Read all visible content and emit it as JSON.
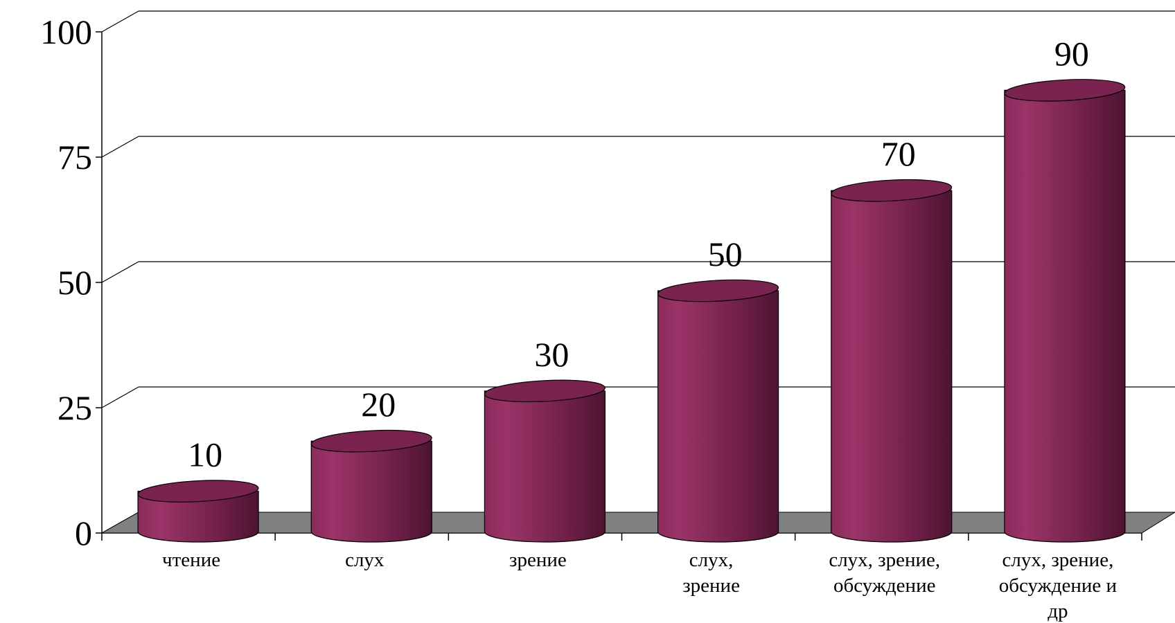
{
  "chart_data": {
    "type": "bar",
    "style": "3d-cylinder",
    "categories": [
      [
        "чтение"
      ],
      [
        "слух"
      ],
      [
        "зрение"
      ],
      [
        "слух,",
        "зрение"
      ],
      [
        "слух, зрение,",
        "обсуждение"
      ],
      [
        "слух, зрение,",
        "обсуждение и",
        "др"
      ]
    ],
    "values": [
      10,
      20,
      30,
      50,
      70,
      90
    ],
    "data_labels": [
      "10",
      "20",
      "30",
      "50",
      "70",
      "90"
    ],
    "ylim": [
      0,
      100
    ],
    "yticks": [
      0,
      25,
      50,
      75,
      100
    ],
    "ytick_labels": [
      "0",
      "25",
      "50",
      "75",
      "100"
    ],
    "grid": true,
    "legend": "none",
    "colors": {
      "bar": "#8e2c5e",
      "bar_dark": "#4a1230",
      "bar_top": "#7a2350",
      "floor": "#808080",
      "grid": "#000000"
    }
  }
}
